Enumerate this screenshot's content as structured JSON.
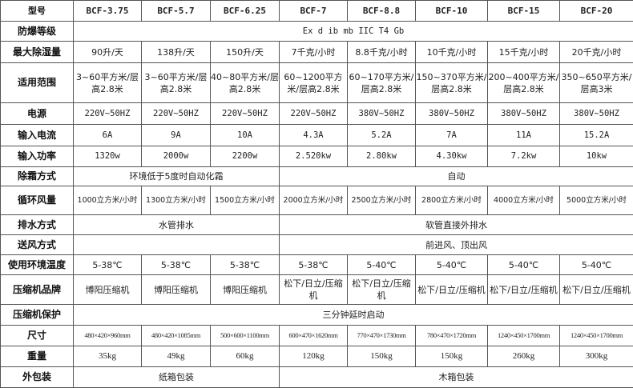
{
  "labels": {
    "model": "型号",
    "explosion": "防爆等级",
    "dehum": "最大除湿量",
    "range": "适用范围",
    "power_supply": "电源",
    "current": "输入电流",
    "power": "输入功率",
    "defrost": "除霜方式",
    "airflow": "循环风量",
    "drain": "排水方式",
    "air_supply": "送风方式",
    "temp": "使用环境温度",
    "compressor": "压缩机品牌",
    "protection": "压缩机保护",
    "size": "尺寸",
    "weight": "重量",
    "packing": "外包装"
  },
  "models": [
    "BCF-3.75",
    "BCF-5.7",
    "BCF-6.25",
    "BCF-7",
    "BCF-8.8",
    "BCF-10",
    "BCF-15",
    "BCF-20"
  ],
  "explosion": "Ex d ib mb IIC T4 Gb",
  "dehum": [
    "90升/天",
    "138升/天",
    "150升/天",
    "7千克/小时",
    "8.8千克/小时",
    "10千克/小时",
    "15千克/小时",
    "20千克/小时"
  ],
  "range": [
    "3~60平方米/层高2.8米",
    "3~60平方米/层高2.8米",
    "40~80平方米/层高2.8米",
    "60~1200平方米/层高2.8米",
    "60~170平方米/层高2.8米",
    "150~370平方米/层高2.8米",
    "200~400平方米/层高2.8米",
    "350~650平方米/层高3米"
  ],
  "power_supply": [
    "220V~50HZ",
    "220V~50HZ",
    "220V~50HZ",
    "220V~50HZ",
    "380V~50HZ",
    "380V~50HZ",
    "380V~50HZ",
    "380V~50HZ"
  ],
  "current": [
    "6A",
    "9A",
    "10A",
    "4.3A",
    "5.2A",
    "7A",
    "11A",
    "15.2A"
  ],
  "power": [
    "1320w",
    "2000w",
    "2200w",
    "2.520kw",
    "2.80kw",
    "4.30kw",
    "7.2kw",
    "10kw"
  ],
  "defrost": {
    "small": "环境低于5度时自动化霜",
    "large": "自动"
  },
  "airflow": [
    "1000立方米/小时",
    "1300立方米/小时",
    "1500立方米/小时",
    "2000立方米/小时",
    "2500立方米/小时",
    "2800立方米/小时",
    "4000立方米/小时",
    "5000立方米/小时"
  ],
  "drain": {
    "small": "水管排水",
    "large": "软管直接外排水"
  },
  "air_supply": {
    "small": "",
    "large": "前进风、顶出风"
  },
  "temp": [
    "5-38℃",
    "5-38℃",
    "5-38℃",
    "5-38℃",
    "5-40℃",
    "5-40℃",
    "5-40℃",
    "5-40℃"
  ],
  "compressor": [
    "博阳压缩机",
    "博阳压缩机",
    "博阳压缩机",
    "松下/日立/压缩机",
    "松下/日立/压缩机",
    "松下/日立/压缩机",
    "松下/日立/压缩机",
    "松下/日立/压缩机"
  ],
  "protection": "三分钟延时启动",
  "size": [
    "480×420×960mm",
    "480×420×1085mm",
    "500×600×1100mm",
    "600×470×1620mm",
    "770×470×1730mm",
    "780×470×1720mm",
    "1240×450×1700mm",
    "1240×450×1700mm"
  ],
  "weight": [
    "35kg",
    "49kg",
    "60kg",
    "120kg",
    "150kg",
    "150kg",
    "260kg",
    "300kg"
  ],
  "packing": {
    "small": "纸箱包装",
    "large": "木箱包装"
  }
}
